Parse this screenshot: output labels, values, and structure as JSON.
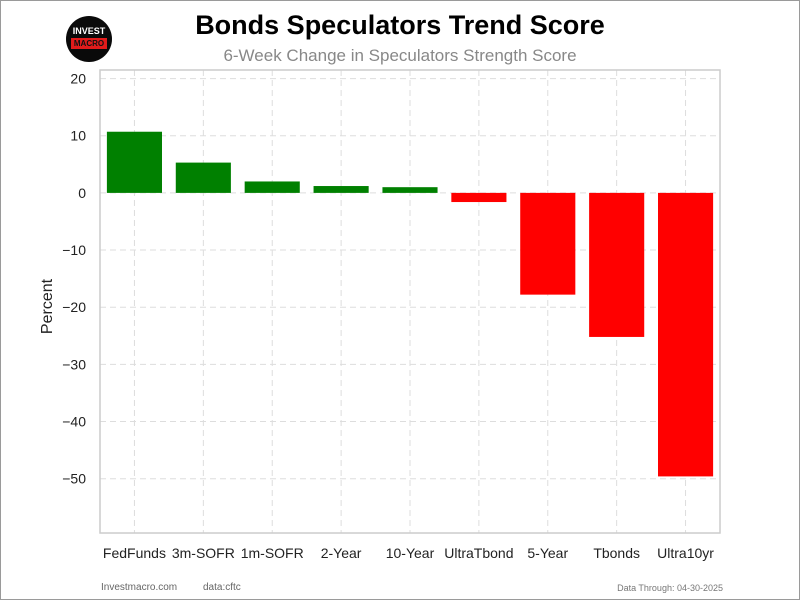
{
  "logo": {
    "line1": "INVEST",
    "line2": "MACRO"
  },
  "footer": {
    "site": "Investmacro.com",
    "source": "data:cftc",
    "through": "Data Through: 04-30-2025"
  },
  "colors": {
    "positive": "#008000",
    "negative": "#ff0000",
    "grid": "#dddddd"
  },
  "chart_data": {
    "type": "bar",
    "title": "Bonds Speculators Trend Score",
    "subtitle": "6-Week Change in Speculators Strength Score",
    "xlabel": "",
    "ylabel": "Percent",
    "categories": [
      "FedFunds",
      "3m-SOFR",
      "1m-SOFR",
      "2-Year",
      "10-Year",
      "UltraTbond",
      "5-Year",
      "Tbonds",
      "Ultra10yr"
    ],
    "values": [
      10.7,
      5.3,
      2.0,
      1.2,
      1.0,
      -1.6,
      -17.8,
      -25.2,
      -49.6
    ],
    "yticks": [
      20,
      10,
      0,
      -10,
      -20,
      -30,
      -40,
      -50
    ],
    "ytick_labels": [
      "20",
      "10",
      "0",
      "−10",
      "−20",
      "−30",
      "−40",
      "−50"
    ],
    "ylim": [
      -59.5,
      21.5
    ],
    "grid": true,
    "grid_style": "dashed",
    "legend": "none"
  }
}
